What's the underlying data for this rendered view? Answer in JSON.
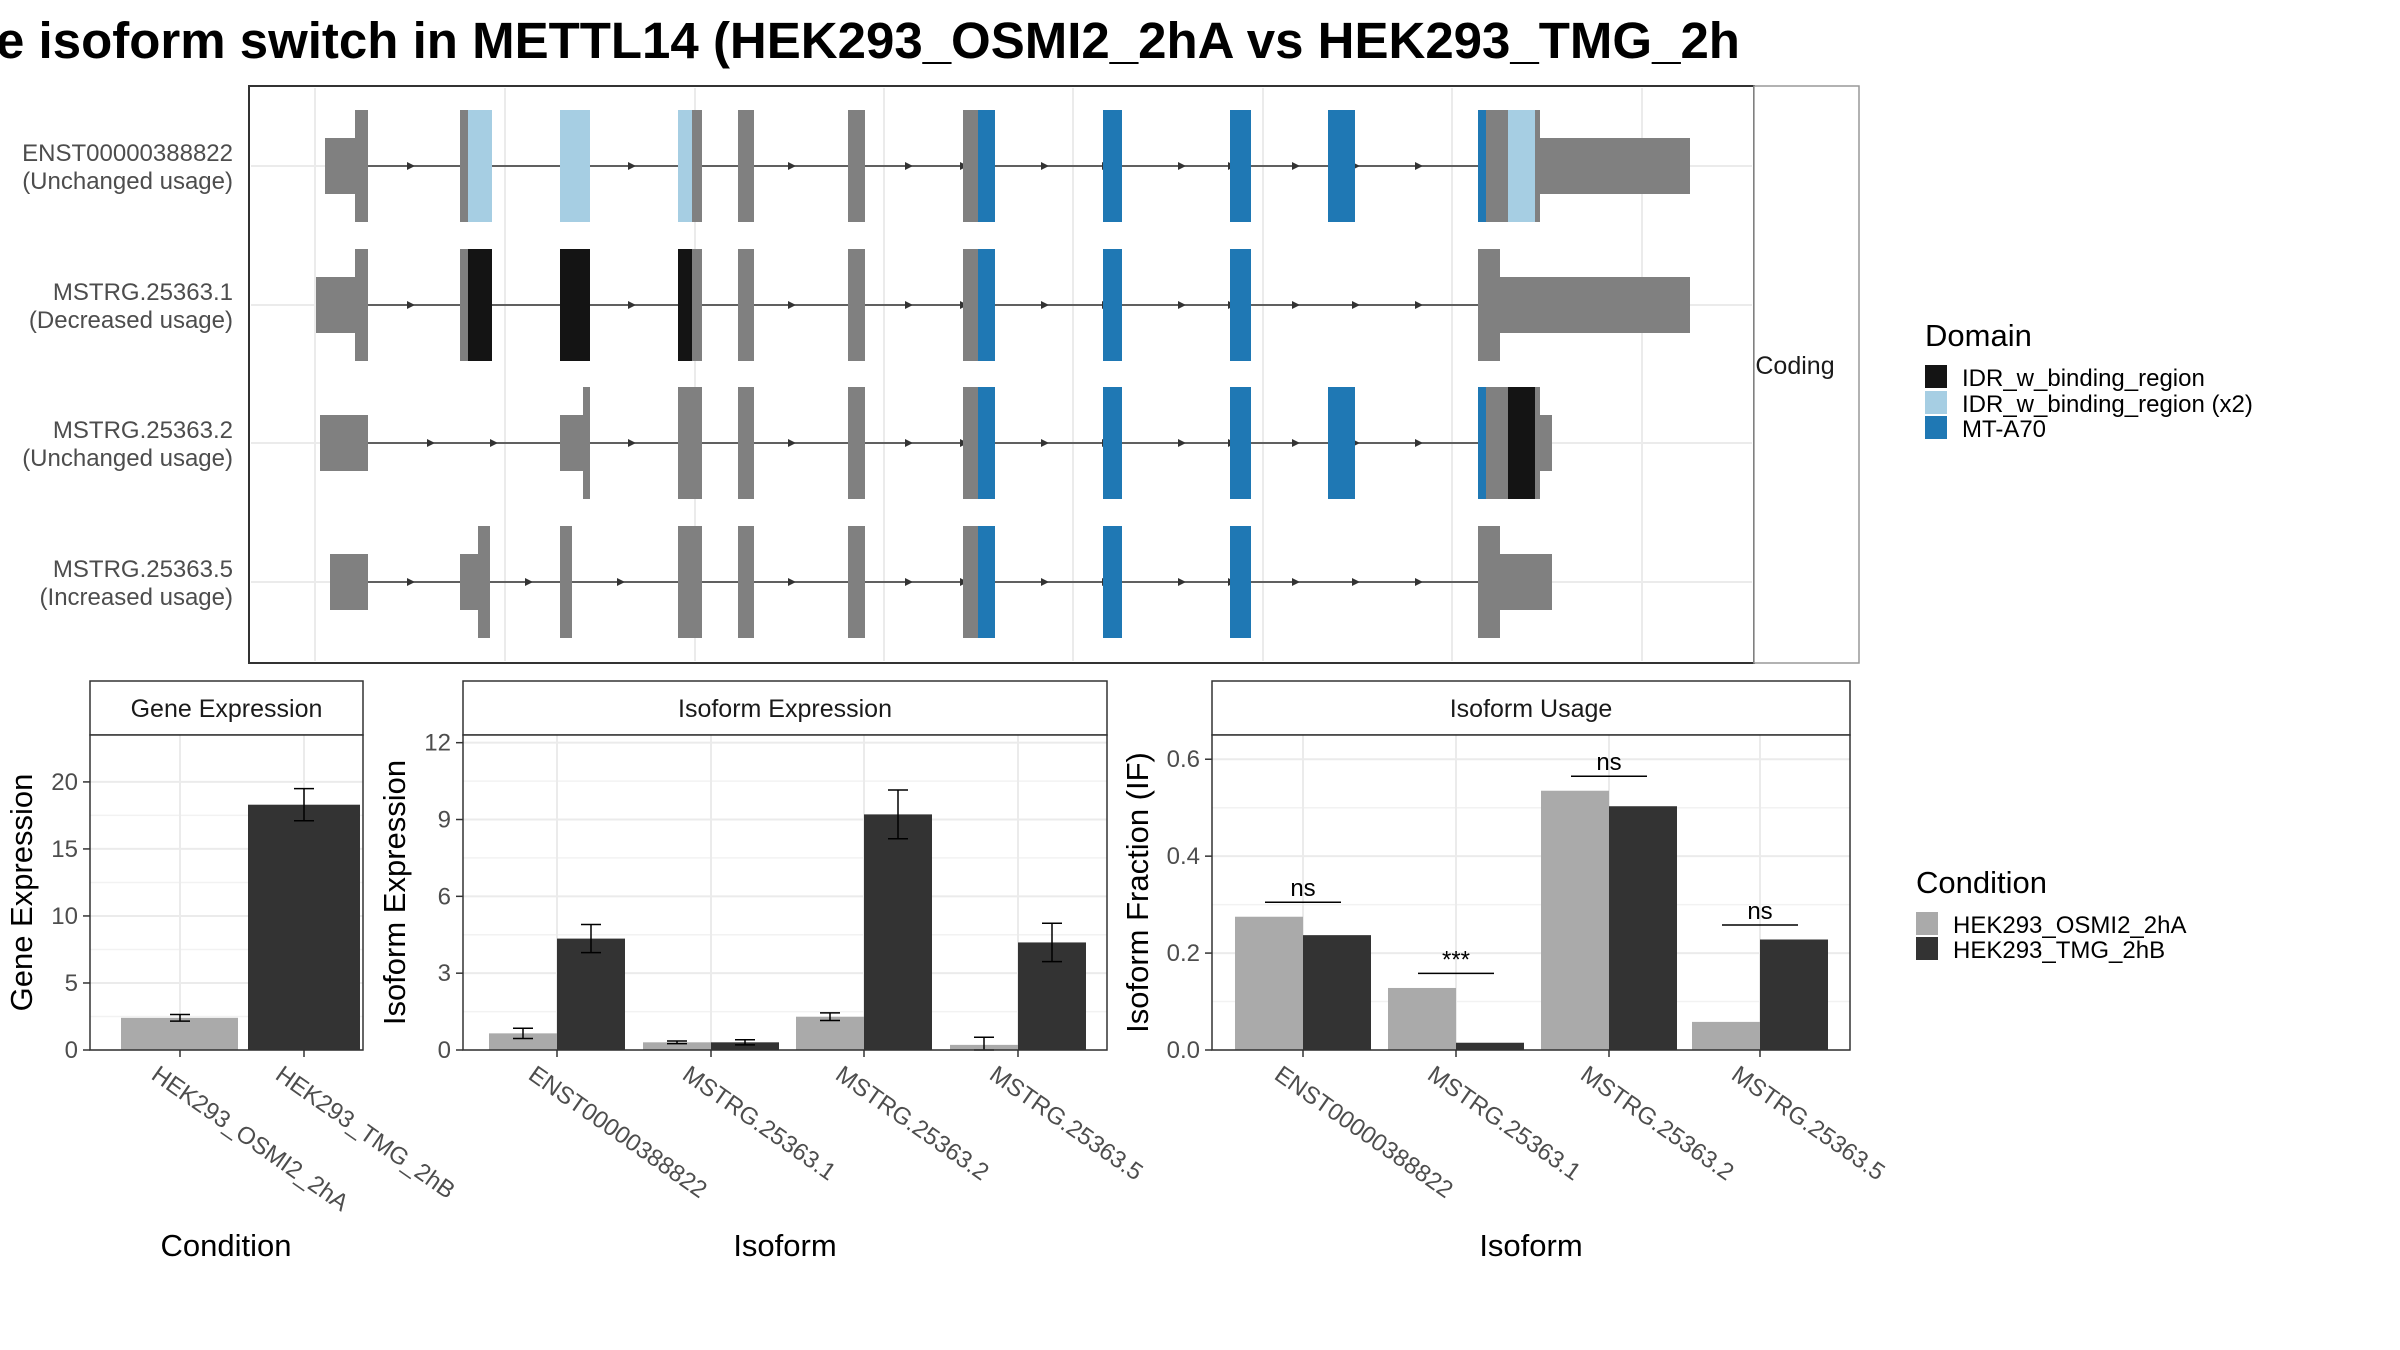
{
  "title": "e isoform switch in METTL14 (HEK293_OSMI2_2hA vs HEK293_TMG_2h",
  "colors": {
    "exon": "#808080",
    "idr": "#141414",
    "idr_x2": "#a6cee3",
    "mt_a70": "#1f78b4",
    "cond_a": "#aaaaaa",
    "cond_b": "#333333"
  },
  "structure": {
    "facet_label": "Coding",
    "isoforms": [
      {
        "id": "ENST00000388822",
        "usage": "(Unchanged usage)"
      },
      {
        "id": "MSTRG.25363.1",
        "usage": "(Decreased usage)"
      },
      {
        "id": "MSTRG.25363.2",
        "usage": "(Unchanged usage)"
      },
      {
        "id": "MSTRG.25363.5",
        "usage": "(Increased usage)"
      }
    ]
  },
  "legend_domain": {
    "title": "Domain",
    "items": [
      {
        "label": "IDR_w_binding_region",
        "color": "#141414"
      },
      {
        "label": "IDR_w_binding_region (x2)",
        "color": "#a6cee3"
      },
      {
        "label": "MT-A70",
        "color": "#1f78b4"
      }
    ]
  },
  "legend_condition": {
    "title": "Condition",
    "items": [
      {
        "label": "HEK293_OSMI2_2hA",
        "color": "#aaaaaa"
      },
      {
        "label": "HEK293_TMG_2hB",
        "color": "#333333"
      }
    ]
  },
  "chart_data": [
    {
      "type": "bar",
      "title": "Gene Expression",
      "xlabel": "Condition",
      "ylabel": "Gene Expression",
      "ylim": [
        0,
        23.5
      ],
      "yticks": [
        0,
        5,
        10,
        15,
        20
      ],
      "categories": [
        "HEK293_OSMI2_2hA",
        "HEK293_TMG_2hB"
      ],
      "values": [
        2.4,
        18.3
      ],
      "errors": [
        0.25,
        1.2
      ]
    },
    {
      "type": "bar",
      "title": "Isoform Expression",
      "xlabel": "Isoform",
      "ylabel": "Isoform Expression",
      "ylim": [
        0,
        12.3
      ],
      "yticks": [
        0,
        3,
        6,
        9,
        12
      ],
      "categories": [
        "ENST00000388822",
        "MSTRG.25363.1",
        "MSTRG.25363.2",
        "MSTRG.25363.5"
      ],
      "series": [
        {
          "name": "HEK293_OSMI2_2hA",
          "values": [
            0.65,
            0.3,
            1.3,
            0.2
          ],
          "errors": [
            0.2,
            0.05,
            0.15,
            0.3
          ]
        },
        {
          "name": "HEK293_TMG_2hB",
          "values": [
            4.35,
            0.3,
            9.2,
            4.2
          ],
          "errors": [
            0.55,
            0.1,
            0.95,
            0.75
          ]
        }
      ]
    },
    {
      "type": "bar",
      "title": "Isoform Usage",
      "xlabel": "Isoform",
      "ylabel": "Isoform Fraction (IF)",
      "ylim": [
        0,
        0.65
      ],
      "yticks": [
        "0.0",
        "0.2",
        "0.4",
        "0.6"
      ],
      "categories": [
        "ENST00000388822",
        "MSTRG.25363.1",
        "MSTRG.25363.2",
        "MSTRG.25363.5"
      ],
      "series": [
        {
          "name": "HEK293_OSMI2_2hA",
          "values": [
            0.275,
            0.128,
            0.535,
            0.058
          ]
        },
        {
          "name": "HEK293_TMG_2hB",
          "values": [
            0.237,
            0.015,
            0.503,
            0.228
          ]
        }
      ],
      "significance": [
        "ns",
        "***",
        "ns",
        "ns"
      ]
    }
  ]
}
